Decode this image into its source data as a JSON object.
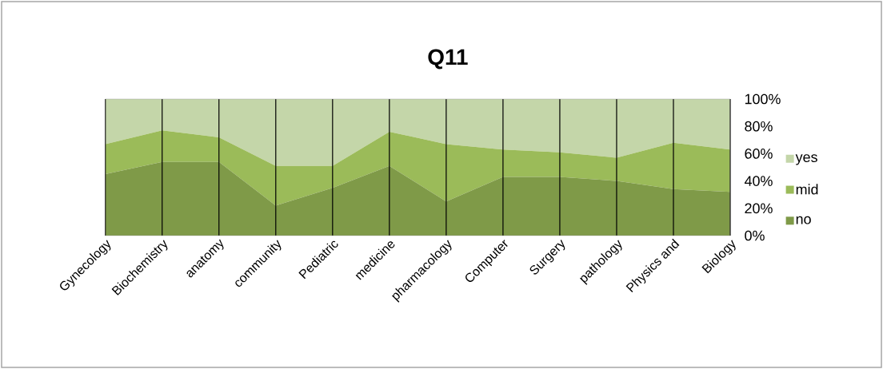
{
  "chart_data": {
    "type": "area",
    "title": "Q11",
    "stacked": true,
    "grid": "x",
    "legend": "right",
    "categories": [
      "Gynecology",
      "Biochemistry",
      "anatomy",
      "community",
      "Pediatric",
      "medicine",
      "pharmacology",
      "Computer",
      "Surgery",
      "pathology",
      "Physics and",
      "Biology"
    ],
    "ylim": [
      0,
      100
    ],
    "yticks": [
      {
        "value": 0,
        "label": "0%"
      },
      {
        "value": 20,
        "label": "20%"
      },
      {
        "value": 40,
        "label": "40%"
      },
      {
        "value": 60,
        "label": "60%"
      },
      {
        "value": 80,
        "label": "80%"
      },
      {
        "value": 100,
        "label": "100%"
      }
    ],
    "series": [
      {
        "name": "no",
        "color": "#7f9a48",
        "values": [
          45,
          54,
          54,
          22,
          35,
          51,
          25,
          43,
          43,
          40,
          34,
          32
        ]
      },
      {
        "name": "mid",
        "color": "#9bbb59",
        "values": [
          22,
          23,
          18,
          29,
          16,
          25,
          42,
          20,
          18,
          17,
          34,
          31
        ]
      },
      {
        "name": "yes",
        "color": "#c4d6a9",
        "values": [
          33,
          23,
          28,
          49,
          49,
          24,
          33,
          37,
          39,
          43,
          32,
          37
        ]
      }
    ]
  }
}
